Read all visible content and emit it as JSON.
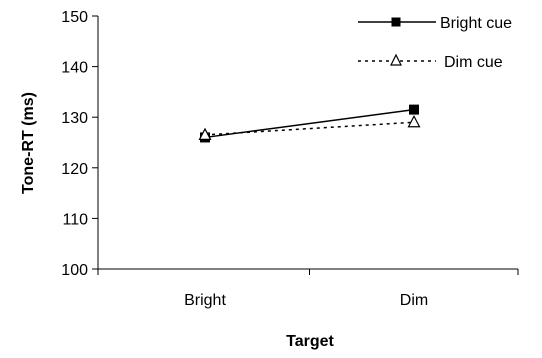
{
  "chart_data": {
    "type": "line",
    "title": "",
    "xlabel": "Target",
    "ylabel": "Tone-RT (ms)",
    "categories": [
      "Bright",
      "Dim"
    ],
    "ylim": [
      100,
      150
    ],
    "yticks": [
      100,
      110,
      120,
      130,
      140,
      150
    ],
    "grid": false,
    "legend_position": "top-right",
    "series": [
      {
        "name": "Bright cue",
        "values": [
          126,
          131.5
        ],
        "line_style": "solid",
        "marker": "filled-square",
        "color": "#000000"
      },
      {
        "name": "Dim cue",
        "values": [
          126.5,
          129
        ],
        "line_style": "dotted",
        "marker": "open-triangle",
        "color": "#000000"
      }
    ]
  }
}
